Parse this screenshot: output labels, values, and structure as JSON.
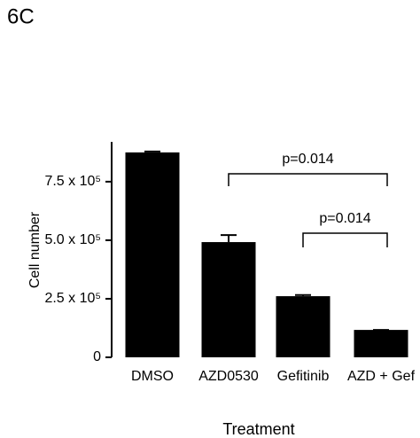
{
  "panel_label": "6C",
  "chart_data": {
    "type": "bar",
    "categories": [
      "DMSO",
      "AZD0530",
      "Gefitinib",
      "AZD + Gef"
    ],
    "values": [
      875000,
      492000,
      261000,
      117000
    ],
    "errors": [
      4000,
      30000,
      5000,
      0
    ],
    "color": "#000000",
    "ylabel": "Cell number",
    "xlabel": "Treatment",
    "ylim": [
      0,
      920000
    ],
    "yticks": [
      0,
      {
        "value": 250000,
        "label": "2.5 x 10⁵"
      },
      {
        "value": 500000,
        "label": "5.0 x 10⁵"
      },
      {
        "value": 750000,
        "label": "7.5 x 10⁵"
      }
    ],
    "annotations": [
      "p=0.014",
      "p=0.014"
    ]
  }
}
